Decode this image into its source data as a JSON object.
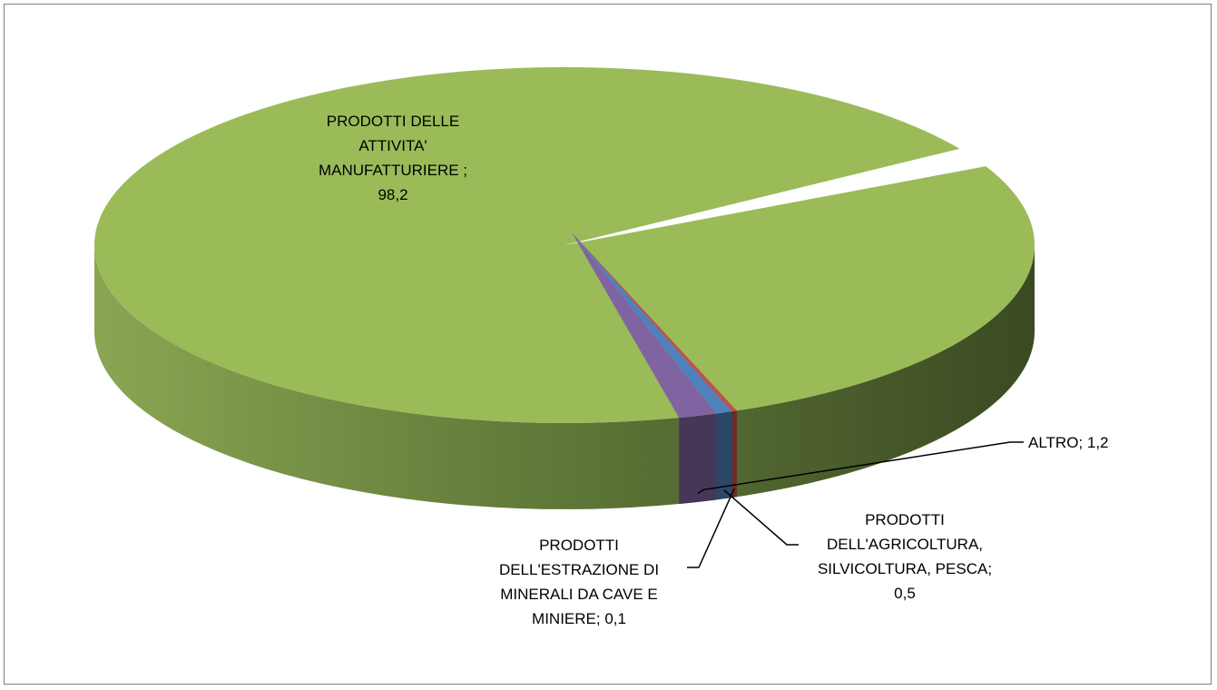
{
  "chart_data": {
    "type": "pie",
    "style": "3d",
    "legend": "none",
    "slices": [
      {
        "label": "PRODOTTI DELLE ATTIVITA' MANUFATTURIERE",
        "value": 98.2,
        "value_text": "98,2",
        "label_lines": [
          "PRODOTTI DELLE",
          "ATTIVITA'",
          "MANUFATTURIERE ;",
          "98,2"
        ],
        "color": "#9bbb59"
      },
      {
        "label": "ALTRO",
        "value": 1.2,
        "value_text": "1,2",
        "label_lines": [
          "ALTRO; 1,2"
        ],
        "color": "#8064a2"
      },
      {
        "label": "PRODOTTI DELL'AGRICOLTURA, SILVICOLTURA, PESCA",
        "value": 0.5,
        "value_text": "0,5",
        "label_lines": [
          "PRODOTTI",
          "DELL'AGRICOLTURA,",
          "SILVICOLTURA, PESCA;",
          "0,5"
        ],
        "color": "#4f81bd"
      },
      {
        "label": "PRODOTTI DELL'ESTRAZIONE DI MINERALI DA CAVE E MINIERE",
        "value": 0.1,
        "value_text": "0,1",
        "label_lines": [
          "PRODOTTI",
          "DELL'ESTRAZIONE DI",
          "MINERALI DA CAVE E",
          "MINIERE; 0,1"
        ],
        "color": "#c0504d"
      }
    ]
  }
}
